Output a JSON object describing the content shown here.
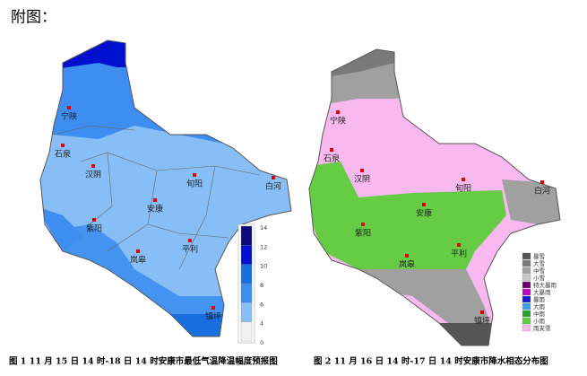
{
  "header": {
    "title": "附图："
  },
  "figures": [
    {
      "caption": "图 1 11 月 15 日 14 时-18 日 14 时安康市最低气温降温幅度预报图",
      "counties": [
        "宁陕",
        "石泉",
        "汉阴",
        "旬阳",
        "白河",
        "安康",
        "紫阳",
        "平利",
        "岚皋",
        "镇坪"
      ],
      "legend": {
        "labels": [
          "14",
          "12",
          "10",
          "8",
          "6",
          "4",
          "0"
        ],
        "colors": [
          "#0a0a78",
          "#0010d0",
          "#1a6fe0",
          "#3d8ef0",
          "#86bef5",
          "#f2f2f2"
        ]
      }
    },
    {
      "caption": "图 2  11 月 16 日 14 时-17 日 14 时安康市降水相态分布图",
      "counties": [
        "宁陕",
        "石泉",
        "汉阴",
        "旬阳",
        "白河",
        "安康",
        "紫阳",
        "平利",
        "岚皋",
        "镇坪"
      ],
      "legend": {
        "labels": [
          "暴雪",
          "大雪",
          "中雪",
          "小雪",
          "特大暴雨",
          "大暴雨",
          "暴雨",
          "大雨",
          "中雨",
          "小雨",
          "雨夹雪"
        ],
        "colors": [
          "#555555",
          "#7a7a7a",
          "#a0a0a0",
          "#c8c8c8",
          "#6a0070",
          "#c000c0",
          "#1a1ad0",
          "#3aa0f0",
          "#2aa02a",
          "#66cc44",
          "#f8b8f0"
        ]
      }
    }
  ]
}
